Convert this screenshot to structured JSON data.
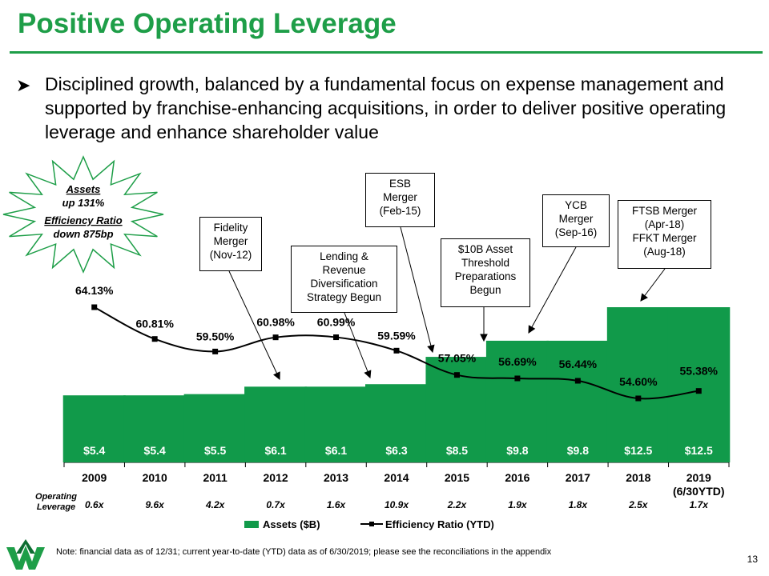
{
  "title": "Positive Operating Leverage",
  "bullet": "Disciplined growth, balanced by a fundamental focus on expense management and supported by franchise-enhancing acquisitions, in order to deliver positive operating leverage and enhance shareholder value",
  "starburst": {
    "line1": "Assets",
    "line2": "up 131%",
    "line3": "Efficiency Ratio",
    "line4": "down 875bp"
  },
  "callouts": {
    "fidelity": [
      "Fidelity",
      "Merger",
      "(Nov-12)"
    ],
    "lending": [
      "Lending &",
      "Revenue",
      "Diversification",
      "Strategy Begun"
    ],
    "esb": [
      "ESB",
      "Merger",
      "(Feb-15)"
    ],
    "threshold": [
      "$10B Asset",
      "Threshold",
      "Preparations",
      "Begun"
    ],
    "ycb": [
      "YCB",
      "Merger",
      "(Sep-16)"
    ],
    "ftsb": [
      "FTSB Merger",
      "(Apr-18)",
      "FFKT Merger",
      "(Aug-18)"
    ]
  },
  "operating_leverage_label": [
    "Operating",
    "Leverage"
  ],
  "note": "Note: financial data as of 12/31; current year-to-date (YTD) data as of 6/30/2019; please see the reconciliations in the appendix",
  "page_number": "13",
  "colors": {
    "brand_green": "#1e9e48",
    "bar_green": "#119a4a"
  },
  "chart_data": {
    "type": "bar+line",
    "categories": [
      "2009",
      "2010",
      "2011",
      "2012",
      "2013",
      "2014",
      "2015",
      "2016",
      "2017",
      "2018",
      "2019"
    ],
    "category_sublabels": [
      "",
      "",
      "",
      "",
      "",
      "",
      "",
      "",
      "",
      "",
      "(6/30YTD)"
    ],
    "series": [
      {
        "name": "Assets ($B)",
        "type": "bar",
        "values": [
          5.4,
          5.4,
          5.5,
          6.1,
          6.1,
          6.3,
          8.5,
          9.8,
          9.8,
          12.5,
          12.5
        ],
        "labels": [
          "$5.4",
          "$5.4",
          "$5.5",
          "$6.1",
          "$6.1",
          "$6.3",
          "$8.5",
          "$9.8",
          "$9.8",
          "$12.5",
          "$12.5"
        ]
      },
      {
        "name": "Efficiency Ratio (YTD)",
        "type": "line",
        "values": [
          64.13,
          60.81,
          59.5,
          60.98,
          60.99,
          59.59,
          57.05,
          56.69,
          56.44,
          54.6,
          55.38
        ],
        "labels": [
          "64.13%",
          "60.81%",
          "59.50%",
          "60.98%",
          "60.99%",
          "59.59%",
          "57.05%",
          "56.69%",
          "56.44%",
          "54.60%",
          "55.38%"
        ]
      }
    ],
    "operating_leverage": [
      "0.6x",
      "9.6x",
      "4.2x",
      "0.7x",
      "1.6x",
      "10.9x",
      "2.2x",
      "1.9x",
      "1.8x",
      "2.5x",
      "1.7x"
    ],
    "legend": [
      "Assets ($B)",
      "Efficiency Ratio (YTD)"
    ]
  }
}
